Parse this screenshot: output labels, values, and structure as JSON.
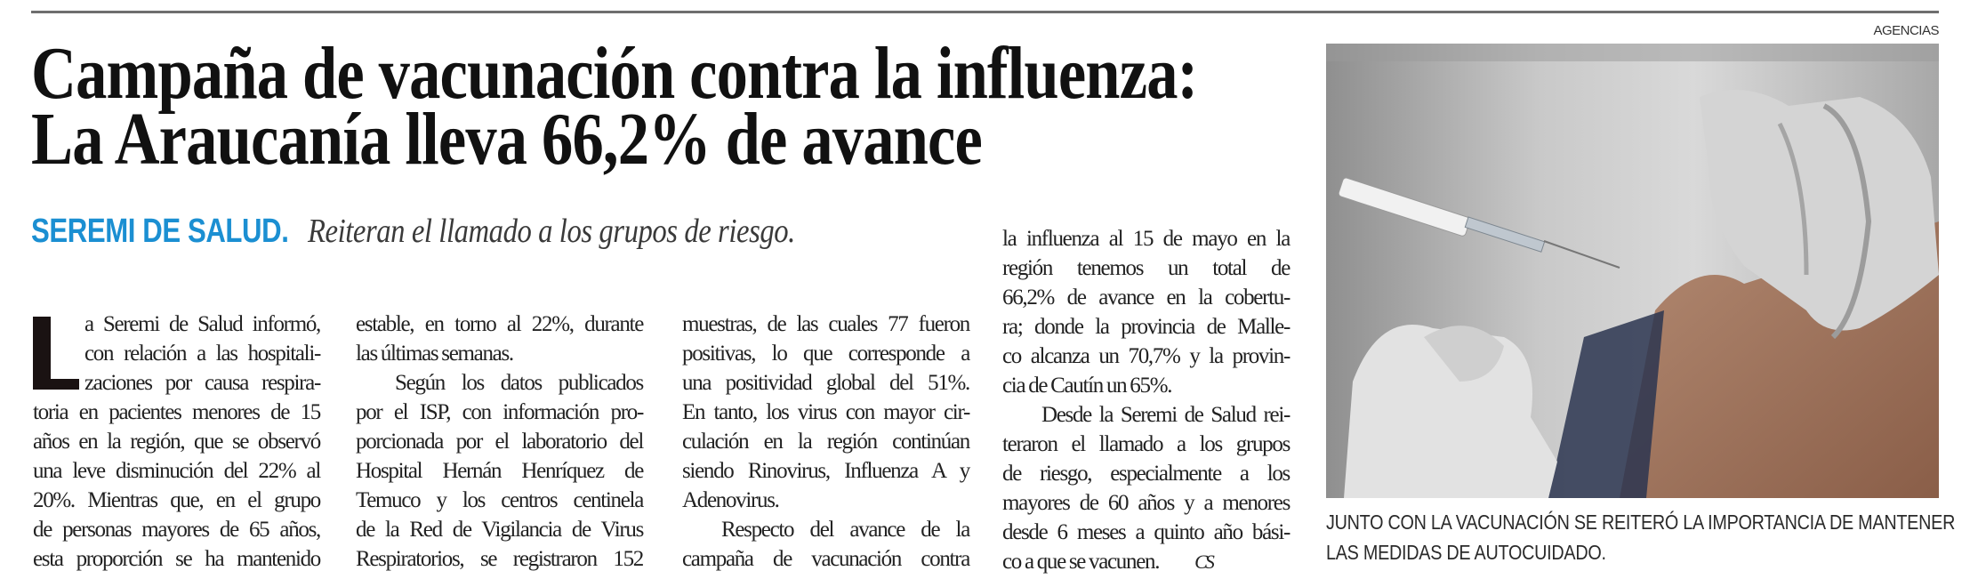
{
  "headline": {
    "lines": [
      "Campaña de vacunación contra la influenza:",
      "La Araucanía lleva 66,2% de avance"
    ]
  },
  "subhead": {
    "kicker": "SEREMI DE SALUD.",
    "deck": "Reiteran el llamado a los grupos de riesgo."
  },
  "body": {
    "drop_cap": "L",
    "col1": [
      "a Seremi de Salud informó,",
      "con relación a las hospitali-",
      "zaciones por causa respira-",
      "toria en pacientes menores de 15",
      "años en la región, que se observó",
      "una leve disminución del 22% al",
      "20%. Mientras que, en el grupo",
      "de personas mayores de 65 años,",
      "esta proporción se ha mantenido"
    ],
    "col2": [
      "estable, en torno al 22%, durante",
      "las últimas semanas.",
      "Según los datos publicados",
      "por el ISP, con información pro-",
      "porcionada por el laboratorio del",
      "Hospital Hernán Henríquez de",
      "Temuco y los centros centinela",
      "de la Red de Vigilancia de Virus",
      "Respiratorios, se registraron 152"
    ],
    "col3": [
      "muestras, de las cuales 77 fueron",
      "positivas, lo que corresponde a",
      "una positividad global del 51%.",
      "En tanto, los virus con mayor cir-",
      "culación en la región continúan",
      "siendo Rinovirus, Influenza A y",
      "Adenovirus.",
      "Respecto del avance de la",
      "campaña de vacunación contra"
    ],
    "col4": [
      "la influenza al 15 de mayo en la",
      "región tenemos un total de",
      "66,2% de avance en la cobertu-",
      "ra; donde la provincia de Malle-",
      "co alcanza un 70,7% y la provin-",
      "cia de Cautín un 65%.",
      "Desde la Seremi de Salud rei-",
      "teraron el llamado a los grupos",
      "de riesgo, especialmente a los",
      "mayores de 60 años y a menores",
      "desde 6 meses a quinto año bási-",
      "co a que se vacunen."
    ],
    "end_mark": "CS"
  },
  "photo": {
    "credit": "AGENCIAS",
    "caption_lines": [
      "JUNTO CON LA VACUNACIÓN SE REITERÓ LA IMPORTANCIA DE MANTENER",
      "LAS MEDIDAS DE AUTOCUIDADO."
    ]
  },
  "colors": {
    "kicker": "#1b8fd2",
    "rule": "#6e6e6e",
    "text": "#1a1a1a"
  }
}
